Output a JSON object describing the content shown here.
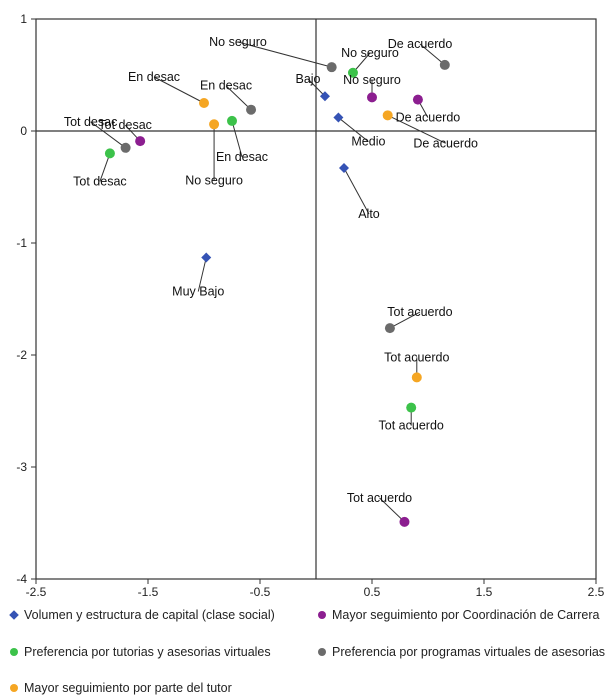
{
  "chart_data": {
    "type": "scatter",
    "title": "",
    "xlabel": "",
    "ylabel": "",
    "xlim": [
      -2.5,
      2.5
    ],
    "ylim": [
      -4,
      1
    ],
    "x_ticks": [
      "-2.5",
      "-1.5",
      "-0.5",
      "0.5",
      "1.5",
      "2.5"
    ],
    "y_ticks": [
      "1",
      "0",
      "-1",
      "-2",
      "-3",
      "-4"
    ],
    "reference_lines": {
      "x": 0,
      "y": 0
    },
    "grid": false,
    "legend_position": "bottom",
    "series": [
      {
        "name": "Volumen y estructura de capital (clase social)",
        "color": "#3553b5",
        "marker": "diamond",
        "points": [
          {
            "label": "Muy Bajo",
            "x": -0.98,
            "y": -1.13
          },
          {
            "label": "Bajo",
            "x": 0.08,
            "y": 0.31
          },
          {
            "label": "Medio",
            "x": 0.2,
            "y": 0.12
          },
          {
            "label": "Alto",
            "x": 0.25,
            "y": -0.33
          }
        ]
      },
      {
        "name": "Mayor seguimiento por Coordinación de Carrera",
        "color": "#8c1e90",
        "marker": "circle",
        "points": [
          {
            "label": "Tot desac",
            "x": -1.57,
            "y": -0.09
          },
          {
            "label": "No seguro",
            "x": 0.5,
            "y": 0.3
          },
          {
            "label": "De acuerdo",
            "x": 0.91,
            "y": 0.28
          },
          {
            "label": "Tot acuerdo",
            "x": 0.79,
            "y": -3.49
          }
        ]
      },
      {
        "name": "Preferencia por tutorias y asesorias virtuales",
        "color": "#3cc24a",
        "marker": "circle",
        "points": [
          {
            "label": "Tot desac",
            "x": -1.84,
            "y": -0.2
          },
          {
            "label": "En desac",
            "x": -0.75,
            "y": 0.09
          },
          {
            "label": "No seguro",
            "x": 0.33,
            "y": 0.52
          },
          {
            "label": "Tot acuerdo",
            "x": 0.85,
            "y": -2.47
          }
        ]
      },
      {
        "name": "Preferencia por programas virtuales de asesorias",
        "color": "#6b6b6b",
        "marker": "circle",
        "points": [
          {
            "label": "Tot desac",
            "x": -1.7,
            "y": -0.15
          },
          {
            "label": "En desac",
            "x": -0.58,
            "y": 0.19
          },
          {
            "label": "No seguro",
            "x": 0.14,
            "y": 0.57
          },
          {
            "label": "De acuerdo",
            "x": 1.15,
            "y": 0.59
          },
          {
            "label": "Tot acuerdo",
            "x": 0.66,
            "y": -1.76
          }
        ]
      },
      {
        "name": "Mayor seguimiento por parte del tutor",
        "color": "#f5a623",
        "marker": "circle",
        "points": [
          {
            "label": "En desac",
            "x": -1.0,
            "y": 0.25
          },
          {
            "label": "No seguro",
            "x": -0.91,
            "y": 0.06
          },
          {
            "label": "De acuerdo",
            "x": 0.64,
            "y": 0.14
          },
          {
            "label": "Tot acuerdo",
            "x": 0.9,
            "y": -2.2
          }
        ]
      }
    ]
  }
}
